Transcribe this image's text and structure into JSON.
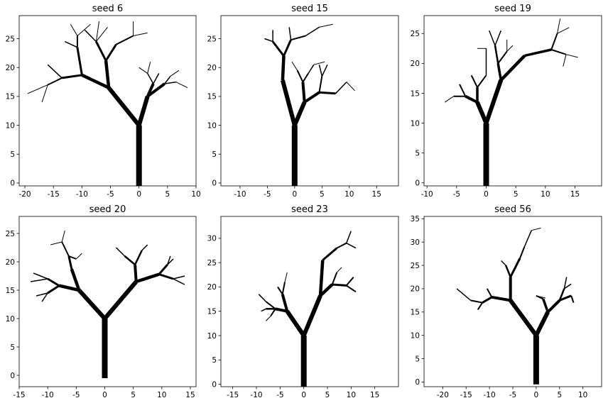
{
  "figure": {
    "background": "#ffffff",
    "tree_color": "#000000"
  },
  "chart_data": [
    {
      "type": "tree",
      "title": "seed 6",
      "xlim": [
        -21,
        10
      ],
      "ylim": [
        -0.5,
        29
      ],
      "xticks": [
        -20,
        -15,
        -10,
        -5,
        0,
        5,
        10
      ],
      "yticks": [
        0,
        5,
        10,
        15,
        20,
        25
      ],
      "segments": [
        [
          0,
          -0.5,
          0,
          10,
          8
        ],
        [
          0,
          10,
          -5.3,
          16.5,
          6
        ],
        [
          0,
          10,
          1.5,
          15,
          6
        ],
        [
          -5.3,
          16.5,
          -10,
          18.7,
          4.5
        ],
        [
          -5.3,
          16.5,
          -5.8,
          21.2,
          4.5
        ],
        [
          1.5,
          15,
          2.5,
          17.2,
          4
        ],
        [
          1.5,
          15,
          4.5,
          17.2,
          4
        ],
        [
          -10,
          18.7,
          -13.5,
          18.2,
          3
        ],
        [
          -10,
          18.7,
          -10.8,
          23.5,
          3
        ],
        [
          -5.8,
          21.2,
          -4,
          24,
          3
        ],
        [
          -5.8,
          21.2,
          -7.5,
          24.5,
          3
        ],
        [
          -13.5,
          18.2,
          -16,
          17,
          2
        ],
        [
          -16,
          17,
          -19.5,
          15.5,
          1
        ],
        [
          -16,
          17,
          -17,
          14,
          1
        ],
        [
          -13.5,
          18.2,
          -16,
          20.5,
          1.5
        ],
        [
          -10.8,
          23.5,
          -10.8,
          25.5,
          2
        ],
        [
          -10.8,
          25.5,
          -12,
          27.5,
          1
        ],
        [
          -10.8,
          25.5,
          -8.5,
          27.5,
          1
        ],
        [
          -10.8,
          23.5,
          -13,
          24.5,
          1.5
        ],
        [
          -7.5,
          24.5,
          -9.5,
          26.5,
          1.5
        ],
        [
          -7.5,
          24.5,
          -7,
          28,
          1
        ],
        [
          -7.5,
          24.5,
          -5.5,
          27,
          1
        ],
        [
          -4,
          24,
          -1,
          25.5,
          2
        ],
        [
          -1,
          25.5,
          -1,
          28,
          1
        ],
        [
          -1,
          25.5,
          1.5,
          26,
          1
        ],
        [
          2.5,
          17.2,
          1.5,
          19,
          1.5
        ],
        [
          1.5,
          19,
          0,
          20,
          1
        ],
        [
          1.5,
          19,
          2,
          21,
          1
        ],
        [
          2.5,
          17.2,
          3.5,
          19,
          1.5
        ],
        [
          4.5,
          17.2,
          5.5,
          18.5,
          1.5
        ],
        [
          5.5,
          18.5,
          7,
          19.5,
          1
        ],
        [
          4.5,
          17.2,
          6.5,
          17.5,
          1.5
        ],
        [
          6.5,
          17.5,
          8.5,
          16.5,
          1
        ]
      ]
    },
    {
      "type": "tree",
      "title": "seed 15",
      "xlim": [
        -13.5,
        19
      ],
      "ylim": [
        -0.5,
        29
      ],
      "xticks": [
        -10,
        -5,
        0,
        5,
        10,
        15
      ],
      "yticks": [
        0,
        5,
        10,
        15,
        20,
        25
      ],
      "segments": [
        [
          0,
          -0.5,
          0,
          10,
          8
        ],
        [
          0,
          10,
          -2.2,
          17.8,
          6
        ],
        [
          0,
          10,
          1.8,
          14,
          6
        ],
        [
          -2.2,
          17.8,
          -2,
          22,
          4.5
        ],
        [
          -2,
          22,
          -4,
          24.5,
          3
        ],
        [
          -2,
          22,
          -0.7,
          24.8,
          3
        ],
        [
          -4,
          24.5,
          -5.5,
          25,
          1.5
        ],
        [
          -4,
          24.5,
          -4,
          26.5,
          1.5
        ],
        [
          -0.7,
          24.8,
          -1,
          27,
          1.5
        ],
        [
          -0.7,
          24.8,
          2,
          25.5,
          2
        ],
        [
          2,
          25.5,
          4.5,
          27,
          1.5
        ],
        [
          4.5,
          27,
          7,
          27.5,
          1
        ],
        [
          1.8,
          14,
          1.5,
          17.5,
          4
        ],
        [
          1.5,
          17.5,
          0.5,
          19.5,
          2
        ],
        [
          1.5,
          17.5,
          2.5,
          19,
          2
        ],
        [
          1.8,
          14,
          4.5,
          15.7,
          4
        ],
        [
          4.5,
          15.7,
          7.5,
          15.5,
          3
        ],
        [
          7.5,
          15.5,
          9.5,
          17.5,
          1.5
        ],
        [
          9.5,
          17.5,
          11,
          16,
          1
        ],
        [
          4.5,
          15.7,
          5,
          18.5,
          2
        ],
        [
          5,
          18.5,
          4.5,
          20.5,
          1.5
        ],
        [
          5,
          18.5,
          6,
          20.5,
          1.5
        ],
        [
          2.5,
          19,
          3.5,
          20.5,
          1.5
        ],
        [
          0.5,
          19.5,
          -0.5,
          21,
          1
        ],
        [
          3.5,
          20.5,
          5.5,
          21,
          1
        ]
      ]
    },
    {
      "type": "tree",
      "title": "seed 19",
      "xlim": [
        -10.5,
        19.5
      ],
      "ylim": [
        -0.5,
        28
      ],
      "xticks": [
        -10,
        -5,
        0,
        5,
        10,
        15
      ],
      "yticks": [
        0,
        5,
        10,
        15,
        20,
        25
      ],
      "segments": [
        [
          0,
          -0.5,
          0,
          10,
          8
        ],
        [
          0,
          10,
          -1.5,
          13.5,
          6
        ],
        [
          0,
          10,
          2.5,
          17.2,
          6
        ],
        [
          2.5,
          17.2,
          6.5,
          21.3,
          4.5
        ],
        [
          6.5,
          21.3,
          11,
          22.3,
          3.5
        ],
        [
          11,
          22.3,
          12,
          25,
          2
        ],
        [
          12,
          25,
          12.5,
          27.5,
          1
        ],
        [
          12,
          25,
          14,
          26,
          1
        ],
        [
          11,
          22.3,
          13.5,
          21.5,
          2
        ],
        [
          13.5,
          21.5,
          15.5,
          21,
          1
        ],
        [
          13.5,
          21.5,
          13,
          19.5,
          1
        ],
        [
          2.5,
          17.2,
          2,
          20,
          3.5
        ],
        [
          2,
          20,
          1.5,
          23,
          2.5
        ],
        [
          1.5,
          23,
          0.5,
          25.5,
          1.5
        ],
        [
          1.5,
          23,
          2.5,
          25.5,
          1.5
        ],
        [
          2,
          20,
          3.5,
          22,
          2
        ],
        [
          3.5,
          22,
          3.5,
          24,
          1
        ],
        [
          3.5,
          22,
          4.5,
          23,
          1
        ],
        [
          -1.5,
          13.5,
          -3.5,
          14.5,
          4
        ],
        [
          -3.5,
          14.5,
          -4.5,
          16.5,
          2
        ],
        [
          -3.5,
          14.5,
          -5.5,
          14.5,
          2
        ],
        [
          -5.5,
          14.5,
          -7,
          13.5,
          1
        ],
        [
          -1.5,
          13.5,
          -1.5,
          16,
          3.5
        ],
        [
          -1.5,
          16,
          -2.5,
          18,
          2
        ],
        [
          -1.5,
          16,
          0,
          18,
          2
        ],
        [
          0,
          18,
          0,
          22.5,
          1.5
        ],
        [
          0,
          22.5,
          -1.5,
          22.5,
          1
        ]
      ]
    },
    {
      "type": "tree",
      "title": "seed 20",
      "xlim": [
        -15,
        16
      ],
      "ylim": [
        -2,
        28
      ],
      "xticks": [
        -15,
        -10,
        -5,
        0,
        5,
        10,
        15
      ],
      "yticks": [
        0,
        5,
        10,
        15,
        20,
        25
      ],
      "segments": [
        [
          0,
          -0.5,
          0,
          10,
          8
        ],
        [
          0,
          10,
          -4.5,
          15,
          6
        ],
        [
          0,
          10,
          5.5,
          16.5,
          6
        ],
        [
          -4.5,
          15,
          -5.8,
          18.7,
          4.5
        ],
        [
          -5.8,
          18.7,
          -6.3,
          21,
          3
        ],
        [
          -6.3,
          21,
          -7.5,
          23.5,
          2
        ],
        [
          -7.5,
          23.5,
          -7,
          25.5,
          1
        ],
        [
          -7.5,
          23.5,
          -9.5,
          23,
          1
        ],
        [
          -6.3,
          21,
          -5,
          20.5,
          2
        ],
        [
          -5,
          20.5,
          -4,
          21.5,
          1
        ],
        [
          -4.5,
          15,
          -8,
          15.8,
          4.5
        ],
        [
          -8,
          15.8,
          -10,
          17,
          3
        ],
        [
          -10,
          17,
          -13,
          16.5,
          1.5
        ],
        [
          -10,
          17,
          -12.5,
          18,
          1.5
        ],
        [
          -8,
          15.8,
          -10,
          14.5,
          3
        ],
        [
          -10,
          14.5,
          -11,
          13,
          1.5
        ],
        [
          -10,
          14.5,
          -12,
          14,
          1.5
        ],
        [
          5.5,
          16.5,
          9.5,
          17.8,
          4.5
        ],
        [
          9.5,
          17.8,
          11,
          19.5,
          3
        ],
        [
          11,
          19.5,
          12,
          20.5,
          1.5
        ],
        [
          11,
          19.5,
          11.5,
          21,
          1.5
        ],
        [
          9.5,
          17.8,
          12,
          17,
          3
        ],
        [
          12,
          17,
          14,
          16,
          1.5
        ],
        [
          12,
          17,
          14,
          17.5,
          1.5
        ],
        [
          5.5,
          16.5,
          5.3,
          19.5,
          4
        ],
        [
          5.3,
          19.5,
          3.5,
          21,
          2.5
        ],
        [
          3.5,
          21,
          2,
          22.5,
          1.5
        ],
        [
          5.3,
          19.5,
          6.5,
          22,
          2.5
        ],
        [
          6.5,
          22,
          7.5,
          23,
          1.5
        ]
      ]
    },
    {
      "type": "tree",
      "title": "seed 23",
      "xlim": [
        -17.5,
        20
      ],
      "ylim": [
        -0.5,
        34.5
      ],
      "xticks": [
        -15,
        -10,
        -5,
        0,
        5,
        10,
        15
      ],
      "yticks": [
        0,
        5,
        10,
        15,
        20,
        25,
        30
      ],
      "segments": [
        [
          0,
          -0.5,
          0,
          10,
          8
        ],
        [
          0,
          10,
          -3.5,
          15,
          6
        ],
        [
          0,
          10,
          3.5,
          18.2,
          6
        ],
        [
          3.5,
          18.2,
          4,
          25.5,
          4.5
        ],
        [
          4,
          25.5,
          7,
          28,
          3
        ],
        [
          7,
          28,
          9,
          29,
          2
        ],
        [
          9,
          29,
          10,
          31.5,
          1.5
        ],
        [
          9,
          29,
          11,
          28,
          1.5
        ],
        [
          3.5,
          18.2,
          6,
          20.5,
          4.5
        ],
        [
          6,
          20.5,
          9,
          20.3,
          3
        ],
        [
          9,
          20.3,
          10.5,
          22,
          2
        ],
        [
          9,
          20.3,
          11,
          19,
          2
        ],
        [
          6,
          20.5,
          7,
          23,
          2
        ],
        [
          7,
          23,
          8,
          24,
          1
        ],
        [
          -3.5,
          15,
          -4.5,
          18.5,
          4
        ],
        [
          -4.5,
          18.5,
          -5.5,
          20,
          2
        ],
        [
          -4.5,
          18.5,
          -4,
          21,
          2
        ],
        [
          -4,
          21,
          -3.5,
          23,
          1
        ],
        [
          -3.5,
          15,
          -6,
          15.5,
          4
        ],
        [
          -6,
          15.5,
          -8,
          15.5,
          2.5
        ],
        [
          -8,
          15.5,
          -9,
          15,
          1.5
        ],
        [
          -6,
          15.5,
          -8,
          17,
          2
        ],
        [
          -8,
          17,
          -9.5,
          18.5,
          1.5
        ],
        [
          -6,
          15.5,
          -7,
          14,
          2
        ],
        [
          -7,
          14,
          -8,
          13,
          1
        ]
      ]
    },
    {
      "type": "tree",
      "title": "seed 56",
      "xlim": [
        -24,
        14
      ],
      "ylim": [
        -1,
        35.5
      ],
      "xticks": [
        -20,
        -15,
        -10,
        -5,
        0,
        5,
        10
      ],
      "yticks": [
        0,
        5,
        10,
        15,
        20,
        25,
        30,
        35
      ],
      "segments": [
        [
          0,
          -0.5,
          0,
          10,
          8
        ],
        [
          0,
          10,
          -5.5,
          17.5,
          6
        ],
        [
          0,
          10,
          2.5,
          15,
          6
        ],
        [
          -5.5,
          17.5,
          -5.5,
          22.5,
          4
        ],
        [
          -5.5,
          22.5,
          -3.5,
          26.5,
          3
        ],
        [
          -3.5,
          26.5,
          -2.5,
          29,
          2
        ],
        [
          -2.5,
          29,
          -1,
          32.5,
          1.5
        ],
        [
          -1,
          32.5,
          1,
          33,
          1
        ],
        [
          -5.5,
          22.5,
          -6.5,
          25,
          2.5
        ],
        [
          -6.5,
          25,
          -7.5,
          26,
          1.5
        ],
        [
          -5.5,
          17.5,
          -9.5,
          18.2,
          4
        ],
        [
          -9.5,
          18.2,
          -11.5,
          17,
          3
        ],
        [
          -11.5,
          17,
          -12.5,
          15.5,
          2
        ],
        [
          -11.5,
          17,
          -14,
          17.5,
          2
        ],
        [
          -14,
          17.5,
          -17,
          20,
          1.5
        ],
        [
          -9.5,
          18.2,
          -10.5,
          20,
          2
        ],
        [
          2.5,
          15,
          5,
          17.5,
          4
        ],
        [
          5,
          17.5,
          6,
          20,
          2.5
        ],
        [
          6,
          20,
          6.5,
          22.5,
          1.5
        ],
        [
          6,
          20,
          7.5,
          21,
          1.5
        ],
        [
          5,
          17.5,
          7.5,
          18.5,
          3
        ],
        [
          7.5,
          18.5,
          8,
          17,
          2
        ],
        [
          2.5,
          15,
          1.5,
          17.8,
          3.5
        ],
        [
          1.5,
          17.8,
          0,
          18.5,
          2
        ],
        [
          0,
          18.5,
          2,
          18,
          1
        ]
      ]
    }
  ]
}
